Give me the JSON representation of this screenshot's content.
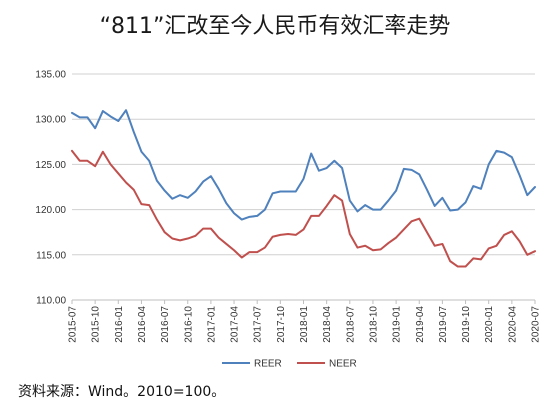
{
  "chart_data": {
    "type": "line",
    "title": "“811”汇改至今人民币有效汇率走势",
    "xlabel": "",
    "ylabel": "",
    "ylim": [
      110,
      135
    ],
    "yticks": [
      "135.00",
      "130.00",
      "125.00",
      "120.00",
      "115.00",
      "110.00"
    ],
    "grid": true,
    "legend_position": "bottom-center",
    "x": [
      "2015-07",
      "2015-08",
      "2015-09",
      "2015-10",
      "2015-11",
      "2015-12",
      "2016-01",
      "2016-02",
      "2016-03",
      "2016-04",
      "2016-05",
      "2016-06",
      "2016-07",
      "2016-08",
      "2016-09",
      "2016-10",
      "2016-11",
      "2016-12",
      "2017-01",
      "2017-02",
      "2017-03",
      "2017-04",
      "2017-05",
      "2017-06",
      "2017-07",
      "2017-08",
      "2017-09",
      "2017-10",
      "2017-11",
      "2017-12",
      "2018-01",
      "2018-02",
      "2018-03",
      "2018-04",
      "2018-05",
      "2018-06",
      "2018-07",
      "2018-08",
      "2018-09",
      "2018-10",
      "2018-11",
      "2018-12",
      "2019-01",
      "2019-02",
      "2019-03",
      "2019-04",
      "2019-05",
      "2019-06",
      "2019-07",
      "2019-08",
      "2019-09",
      "2019-10",
      "2019-11",
      "2019-12",
      "2020-01",
      "2020-02",
      "2020-03",
      "2020-04",
      "2020-05",
      "2020-06",
      "2020-07"
    ],
    "x_tick_labels": [
      "2015-07",
      "2015-10",
      "2016-01",
      "2016-04",
      "2016-07",
      "2016-10",
      "2017-01",
      "2017-04",
      "2017-07",
      "2017-10",
      "2018-01",
      "2018-04",
      "2018-07",
      "2018-10",
      "2019-01",
      "2019-04",
      "2019-07",
      "2019-10",
      "2020-01",
      "2020-04",
      "2020-07"
    ],
    "series": [
      {
        "name": "REER",
        "color": "#4F81BD",
        "values": [
          130.7,
          130.2,
          130.2,
          129.0,
          130.9,
          130.3,
          129.8,
          131.0,
          128.6,
          126.4,
          125.4,
          123.2,
          122.1,
          121.2,
          121.6,
          121.3,
          122.0,
          123.1,
          123.7,
          122.3,
          120.7,
          119.6,
          118.9,
          119.2,
          119.3,
          120.0,
          121.8,
          122.0,
          122.0,
          122.0,
          123.4,
          126.2,
          124.3,
          124.6,
          125.4,
          124.6,
          121.0,
          119.8,
          120.5,
          120.0,
          120.0,
          121.0,
          122.1,
          124.5,
          124.4,
          123.9,
          122.2,
          120.4,
          121.3,
          119.9,
          120.0,
          120.8,
          122.6,
          122.3,
          125.0,
          126.5,
          126.3,
          125.8,
          123.8,
          121.6,
          122.5
        ]
      },
      {
        "name": "NEER",
        "color": "#C0504D",
        "values": [
          126.5,
          125.4,
          125.4,
          124.8,
          126.4,
          125.0,
          124.0,
          123.0,
          122.2,
          120.6,
          120.5,
          118.9,
          117.5,
          116.8,
          116.6,
          116.8,
          117.1,
          117.9,
          117.9,
          116.9,
          116.2,
          115.5,
          114.7,
          115.3,
          115.3,
          115.8,
          117.0,
          117.2,
          117.3,
          117.2,
          117.8,
          119.3,
          119.3,
          120.4,
          121.6,
          121.0,
          117.3,
          115.8,
          116.0,
          115.5,
          115.6,
          116.3,
          116.9,
          117.8,
          118.7,
          119.0,
          117.5,
          116.0,
          116.2,
          114.3,
          113.7,
          113.7,
          114.6,
          114.5,
          115.7,
          116.0,
          117.2,
          117.6,
          116.5,
          115.0,
          115.4
        ]
      }
    ]
  },
  "source_note": "资料来源：Wind。2010=100。"
}
